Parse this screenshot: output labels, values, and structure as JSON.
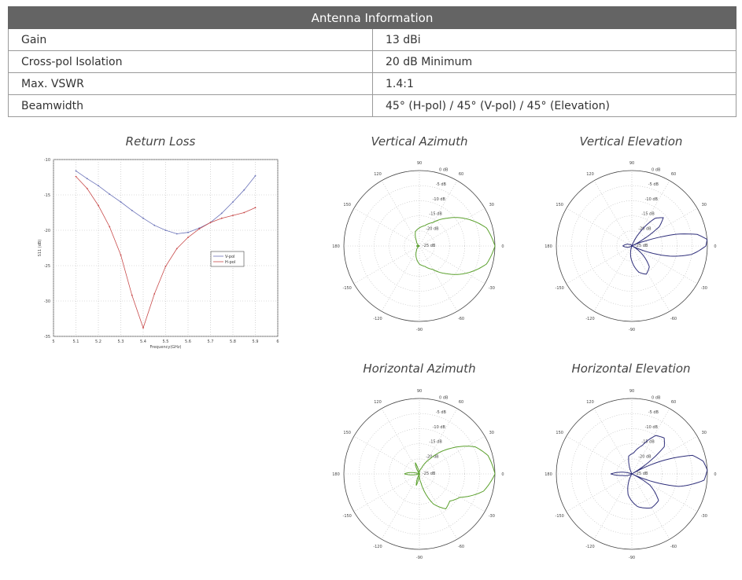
{
  "table": {
    "header": "Antenna Information",
    "rows": [
      {
        "label": "Gain",
        "value": "13 dBi"
      },
      {
        "label": "Cross-pol Isolation",
        "value": "20 dB Minimum"
      },
      {
        "label": "Max. VSWR",
        "value": "1.4:1"
      },
      {
        "label": "Beamwidth",
        "value": "45° (H-pol) / 45° (V-pol) / 45° (Elevation)"
      }
    ]
  },
  "chart_data": [
    {
      "type": "line",
      "title": "Return Loss",
      "xlabel": "Frequency(GHz)",
      "ylabel": "S11 (dB)",
      "xlim": [
        5,
        6
      ],
      "ylim": [
        -35,
        -10
      ],
      "grid": true,
      "legend": "center-right",
      "xticks": [
        "5",
        "5.1",
        "5.2",
        "5.3",
        "5.4",
        "5.5",
        "5.6",
        "5.7",
        "5.8",
        "5.9",
        "6"
      ],
      "yticks": [
        "-10",
        "-15",
        "-20",
        "-25",
        "-30",
        "-35"
      ],
      "x": [
        5.1,
        5.15,
        5.2,
        5.25,
        5.3,
        5.35,
        5.4,
        5.45,
        5.5,
        5.55,
        5.6,
        5.65,
        5.7,
        5.75,
        5.8,
        5.85,
        5.9
      ],
      "series": [
        {
          "name": "V-pol",
          "color": "#6a72b8",
          "values": [
            -11.6,
            -12.7,
            -13.7,
            -14.9,
            -16.0,
            -17.2,
            -18.3,
            -19.3,
            -20.0,
            -20.5,
            -20.3,
            -19.7,
            -18.9,
            -17.6,
            -16.0,
            -14.3,
            -12.3
          ]
        },
        {
          "name": "H-pol",
          "color": "#c84a4a",
          "values": [
            -12.4,
            -14.1,
            -16.5,
            -19.5,
            -23.5,
            -29.2,
            -33.8,
            -29.0,
            -25.1,
            -22.6,
            -21.0,
            -19.8,
            -18.9,
            -18.3,
            -17.9,
            -17.5,
            -16.8
          ]
        }
      ]
    },
    {
      "type": "polar",
      "title": "Vertical Azimuth",
      "color": "#5aa02c",
      "rlim": [
        -25,
        0
      ],
      "rticks": [
        "0 dB",
        "-5 dB",
        "-10 dB",
        "-15 dB",
        "-20 dB",
        "-25 dB"
      ],
      "angle_ticks": [
        "0",
        "30",
        "60",
        "90",
        "120",
        "150",
        "180",
        "-150",
        "-120",
        "-90",
        "-60",
        "-30"
      ],
      "pattern": [
        [
          -180,
          -24
        ],
        [
          -150,
          -25
        ],
        [
          -120,
          -23
        ],
        [
          -90,
          -19
        ],
        [
          -75,
          -18
        ],
        [
          -60,
          -16
        ],
        [
          -45,
          -12
        ],
        [
          -30,
          -7
        ],
        [
          -15,
          -2
        ],
        [
          0,
          0
        ],
        [
          15,
          -2
        ],
        [
          30,
          -7
        ],
        [
          45,
          -12
        ],
        [
          60,
          -16
        ],
        [
          75,
          -18
        ],
        [
          90,
          -19
        ],
        [
          105,
          -20
        ],
        [
          120,
          -23
        ],
        [
          150,
          -25
        ],
        [
          180,
          -24
        ]
      ]
    },
    {
      "type": "polar",
      "title": "Vertical Elevation",
      "color": "#2e2e7a",
      "rlim": [
        -25,
        0
      ],
      "rticks": [
        "0 dB",
        "-5 dB",
        "-10 dB",
        "-15 dB",
        "-20 dB",
        "-25 dB"
      ],
      "angle_ticks": [
        "0",
        "30",
        "60",
        "90",
        "120",
        "150",
        "180",
        "-150",
        "-120",
        "-90",
        "-60",
        "-30"
      ],
      "pattern": [
        [
          -180,
          -22
        ],
        [
          -150,
          -25
        ],
        [
          -110,
          -25
        ],
        [
          -90,
          -20
        ],
        [
          -75,
          -16
        ],
        [
          -63,
          -14.5
        ],
        [
          -50,
          -16
        ],
        [
          -35,
          -22
        ],
        [
          -25,
          -25
        ],
        [
          -15,
          -12
        ],
        [
          -8,
          -5
        ],
        [
          0,
          -0.5
        ],
        [
          5,
          0
        ],
        [
          10,
          -3
        ],
        [
          15,
          -10
        ],
        [
          20,
          -20
        ],
        [
          27,
          -25
        ],
        [
          35,
          -14
        ],
        [
          42,
          -11
        ],
        [
          50,
          -13
        ],
        [
          60,
          -20
        ],
        [
          70,
          -25
        ],
        [
          110,
          -25
        ],
        [
          150,
          -24
        ],
        [
          180,
          -22
        ]
      ]
    },
    {
      "type": "polar",
      "title": "Horizontal Azimuth",
      "color": "#5aa02c",
      "rlim": [
        -25,
        0
      ],
      "rticks": [
        "0 dB",
        "-5 dB",
        "-10 dB",
        "-15 dB",
        "-20 dB",
        "-25 dB"
      ],
      "angle_ticks": [
        "0",
        "30",
        "60",
        "90",
        "120",
        "150",
        "180",
        "-150",
        "-120",
        "-90",
        "-60",
        "-30"
      ],
      "pattern": [
        [
          -180,
          -20
        ],
        [
          -165,
          -25
        ],
        [
          -120,
          -25
        ],
        [
          -105,
          -21
        ],
        [
          -95,
          -25
        ],
        [
          -80,
          -22
        ],
        [
          -65,
          -14
        ],
        [
          -53,
          -10.5
        ],
        [
          -42,
          -11.5
        ],
        [
          -30,
          -9.5
        ],
        [
          -15,
          -3
        ],
        [
          0,
          0
        ],
        [
          15,
          -1.5
        ],
        [
          26,
          -4.5
        ],
        [
          40,
          -12
        ],
        [
          55,
          -19
        ],
        [
          70,
          -23
        ],
        [
          100,
          -25
        ],
        [
          110,
          -21
        ],
        [
          125,
          -25
        ],
        [
          160,
          -25
        ],
        [
          175,
          -21
        ],
        [
          180,
          -20
        ]
      ]
    },
    {
      "type": "polar",
      "title": "Horizontal Elevation",
      "color": "#2e2e7a",
      "rlim": [
        -25,
        0
      ],
      "rticks": [
        "0 dB",
        "-5 dB",
        "-10 dB",
        "-15 dB",
        "-20 dB",
        "-25 dB"
      ],
      "angle_ticks": [
        "0",
        "30",
        "60",
        "90",
        "120",
        "150",
        "180",
        "-150",
        "-120",
        "-90",
        "-60",
        "-30"
      ],
      "pattern": [
        [
          -180,
          -18
        ],
        [
          -170,
          -22
        ],
        [
          -150,
          -25
        ],
        [
          -120,
          -25
        ],
        [
          -100,
          -18
        ],
        [
          -80,
          -14
        ],
        [
          -60,
          -12
        ],
        [
          -45,
          -12.5
        ],
        [
          -32,
          -18
        ],
        [
          -25,
          -25
        ],
        [
          -15,
          -9
        ],
        [
          -5,
          -1
        ],
        [
          3,
          0
        ],
        [
          10,
          -1
        ],
        [
          17,
          -4
        ],
        [
          24,
          -15
        ],
        [
          30,
          -25
        ],
        [
          40,
          -11
        ],
        [
          48,
          -9
        ],
        [
          58,
          -10
        ],
        [
          70,
          -15
        ],
        [
          85,
          -18
        ],
        [
          100,
          -19
        ],
        [
          115,
          -25
        ],
        [
          160,
          -25
        ],
        [
          172,
          -21
        ],
        [
          180,
          -18
        ]
      ]
    }
  ]
}
